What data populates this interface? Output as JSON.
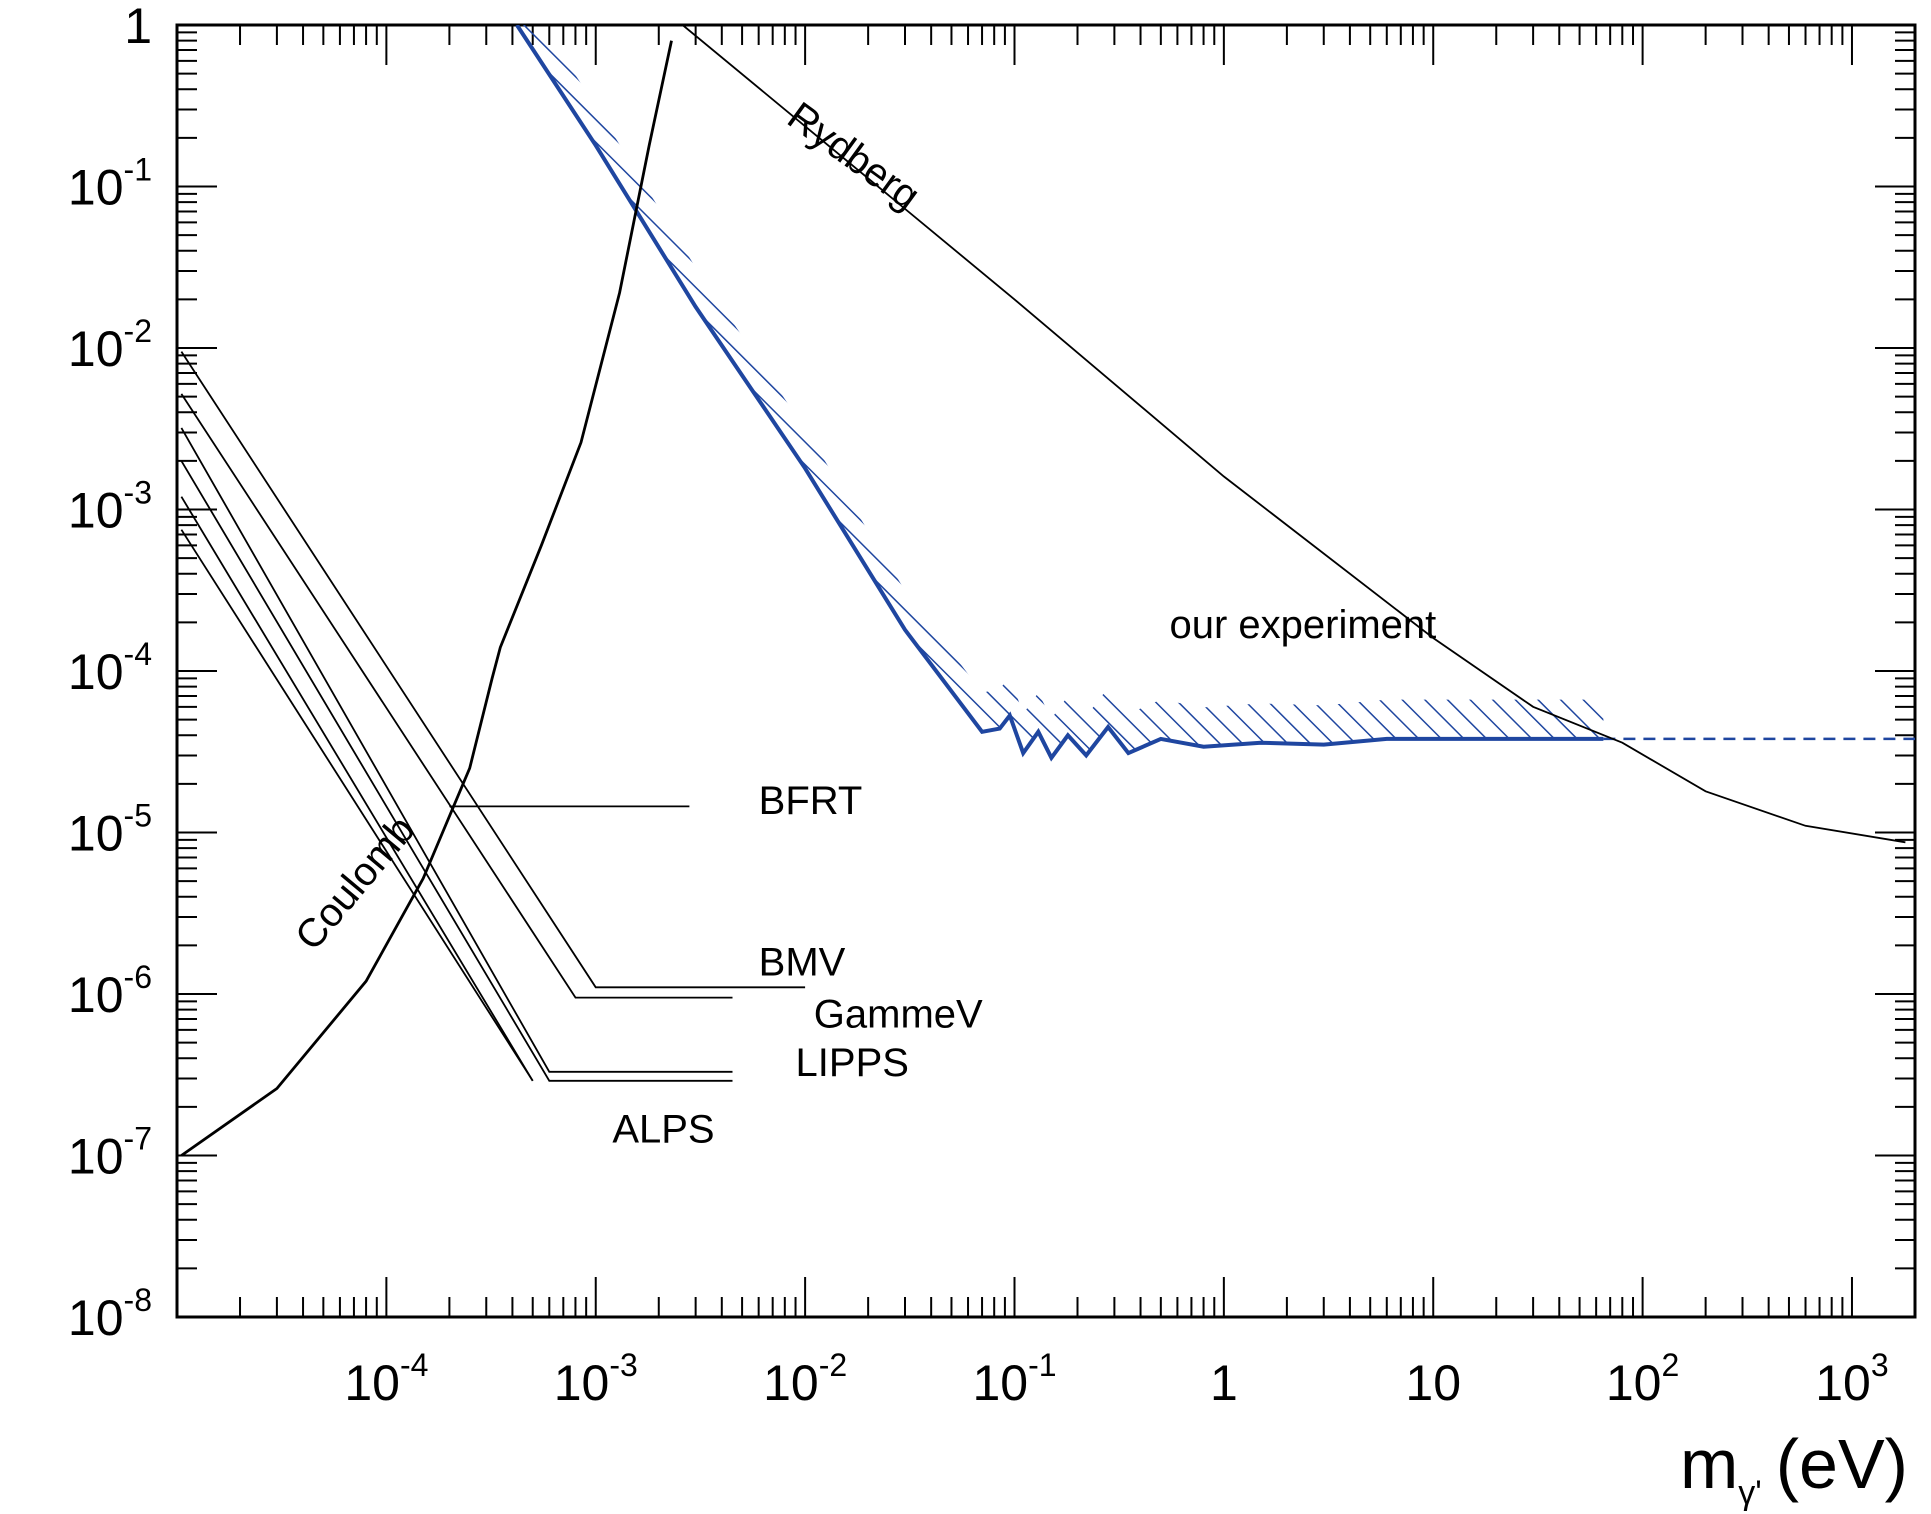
{
  "chart_data": {
    "type": "line",
    "title": "",
    "xlabel": {
      "base": "m",
      "subscript": "γ'",
      "unit": "(eV)"
    },
    "ylabel": "",
    "x_scale": "log",
    "y_scale": "log",
    "xlim": [
      1e-05,
      2000
    ],
    "ylim": [
      1e-08,
      1
    ],
    "grid": false,
    "x_ticks": [
      {
        "value": 0.0001,
        "base": "10",
        "exp": "-4"
      },
      {
        "value": 0.001,
        "base": "10",
        "exp": "-3"
      },
      {
        "value": 0.01,
        "base": "10",
        "exp": "-2"
      },
      {
        "value": 0.1,
        "base": "10",
        "exp": "-1"
      },
      {
        "value": 1,
        "base": "1",
        "exp": ""
      },
      {
        "value": 10,
        "base": "10",
        "exp": ""
      },
      {
        "value": 100,
        "base": "10",
        "exp": "2"
      },
      {
        "value": 1000,
        "base": "10",
        "exp": "3"
      }
    ],
    "y_ticks": [
      {
        "value": 1,
        "base": "1",
        "exp": ""
      },
      {
        "value": 0.1,
        "base": "10",
        "exp": "-1"
      },
      {
        "value": 0.01,
        "base": "10",
        "exp": "-2"
      },
      {
        "value": 0.001,
        "base": "10",
        "exp": "-3"
      },
      {
        "value": 0.0001,
        "base": "10",
        "exp": "-4"
      },
      {
        "value": 1e-05,
        "base": "10",
        "exp": "-5"
      },
      {
        "value": 1e-06,
        "base": "10",
        "exp": "-6"
      },
      {
        "value": 1e-07,
        "base": "10",
        "exp": "-7"
      },
      {
        "value": 1e-08,
        "base": "10",
        "exp": "-8"
      }
    ],
    "series": [
      {
        "name": "our experiment",
        "color": "#1f46a0",
        "style": "solid-hatched",
        "points": [
          [
            0.00042,
            1
          ],
          [
            0.001,
            0.18
          ],
          [
            0.003,
            0.018
          ],
          [
            0.01,
            0.0018
          ],
          [
            0.03,
            0.00018
          ],
          [
            0.07,
            4.2e-05
          ],
          [
            0.085,
            4.4e-05
          ],
          [
            0.095,
            5.3e-05
          ],
          [
            0.11,
            3.1e-05
          ],
          [
            0.13,
            4.2e-05
          ],
          [
            0.15,
            2.9e-05
          ],
          [
            0.18,
            4e-05
          ],
          [
            0.22,
            3e-05
          ],
          [
            0.28,
            4.5e-05
          ],
          [
            0.35,
            3.1e-05
          ],
          [
            0.5,
            3.8e-05
          ],
          [
            0.8,
            3.4e-05
          ],
          [
            1.5,
            3.6e-05
          ],
          [
            3,
            3.5e-05
          ],
          [
            6,
            3.8e-05
          ],
          [
            65,
            3.8e-05
          ]
        ]
      },
      {
        "name": "",
        "color": "#1f46a0",
        "style": "dashed",
        "points": [
          [
            65,
            3.8e-05
          ],
          [
            2000,
            3.8e-05
          ]
        ]
      },
      {
        "name": "Rydberg",
        "color": "#000000",
        "style": "thin",
        "points": [
          [
            0.0026,
            1
          ],
          [
            0.1,
            0.02
          ],
          [
            1,
            0.0016
          ],
          [
            10,
            0.00016
          ],
          [
            30,
            6e-05
          ],
          [
            80,
            3.6e-05
          ],
          [
            200,
            1.8e-05
          ],
          [
            600,
            1.1e-05
          ],
          [
            1800,
            8.7e-06
          ]
        ]
      },
      {
        "name": "Coulomb",
        "color": "#000000",
        "style": "solid",
        "points": [
          [
            1.05e-05,
            1e-07
          ],
          [
            3e-05,
            2.6e-07
          ],
          [
            8e-05,
            1.2e-06
          ],
          [
            0.00015,
            5.2e-06
          ],
          [
            0.00025,
            2.5e-05
          ],
          [
            0.00032,
            9e-05
          ],
          [
            0.00035,
            0.00014
          ],
          [
            0.00055,
            0.0006
          ],
          [
            0.00085,
            0.0026
          ],
          [
            0.0013,
            0.022
          ],
          [
            0.0018,
            0.18
          ],
          [
            0.0023,
            0.8
          ]
        ]
      },
      {
        "name": "BFRT",
        "color": "#000000",
        "style": "thin",
        "points": [
          [
            0.0002,
            1.45e-05
          ],
          [
            0.0028,
            1.45e-05
          ]
        ]
      },
      {
        "name": "BMV",
        "color": "#000000",
        "style": "thin",
        "points": [
          [
            1.05e-05,
            0.0095
          ],
          [
            0.001,
            1.1e-06
          ],
          [
            0.01,
            1.1e-06
          ]
        ]
      },
      {
        "name": "GammeV",
        "color": "#000000",
        "style": "thin",
        "points": [
          [
            1.05e-05,
            0.0052
          ],
          [
            0.0008,
            9.5e-07
          ],
          [
            0.0045,
            9.5e-07
          ]
        ]
      },
      {
        "name": "LIPPS",
        "color": "#000000",
        "style": "thin",
        "points": [
          [
            1.05e-05,
            0.0032
          ],
          [
            0.0006,
            3.3e-07
          ],
          [
            0.0045,
            3.3e-07
          ]
        ],
        "points2": [
          [
            1.05e-05,
            0.002
          ],
          [
            0.0006,
            2.9e-07
          ],
          [
            0.0045,
            2.9e-07
          ]
        ]
      },
      {
        "name": "ALPS",
        "color": "#000000",
        "style": "thin",
        "points": [
          [
            1.05e-05,
            0.0012
          ],
          [
            0.0005,
            2.9e-07
          ]
        ],
        "points2": [
          [
            1.05e-05,
            0.00075
          ],
          [
            0.0005,
            2.9e-07
          ]
        ]
      }
    ],
    "annotations": [
      {
        "text": "Rydberg",
        "x": 0.008,
        "y": 0.25,
        "rotate": 36
      },
      {
        "text": "our experiment",
        "x": 0.55,
        "y": 0.00016,
        "rotate": 0
      },
      {
        "text": "BFRT",
        "x": 0.006,
        "y": 1.3e-05,
        "rotate": 0
      },
      {
        "text": "BMV",
        "x": 0.006,
        "y": 1.3e-06,
        "rotate": 0
      },
      {
        "text": "GammeV",
        "x": 0.011,
        "y": 6.2e-07,
        "rotate": 0
      },
      {
        "text": "LIPPS",
        "x": 0.009,
        "y": 3.1e-07,
        "rotate": 0
      },
      {
        "text": "ALPS",
        "x": 0.0012,
        "y": 1.2e-07,
        "rotate": 0
      },
      {
        "text": "Coulomb",
        "x": 4.5e-05,
        "y": 1.8e-06,
        "rotate": -50
      }
    ]
  }
}
